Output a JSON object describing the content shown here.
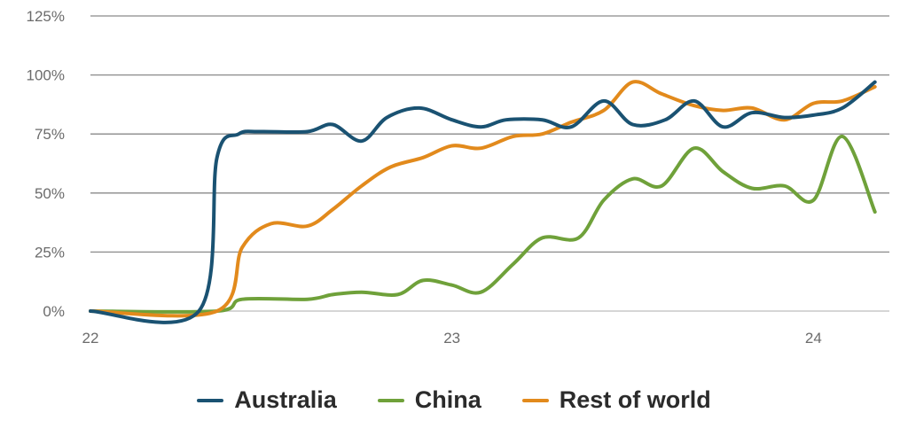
{
  "chart_data": {
    "type": "line",
    "ylim": [
      0,
      125
    ],
    "y_ticks": [
      0,
      25,
      50,
      75,
      100,
      125
    ],
    "y_tick_labels": [
      "0%",
      "25%",
      "50%",
      "75%",
      "100%",
      "125%"
    ],
    "xlim": [
      22,
      24.21
    ],
    "x_ticks": [
      22,
      23,
      24
    ],
    "x_tick_labels": [
      "22",
      "23",
      "24"
    ],
    "grid": true,
    "legend_position": "bottom",
    "series": [
      {
        "name": "Australia",
        "color": "#1a5272",
        "x": [
          22.0,
          22.3,
          22.35,
          22.41,
          22.47,
          22.6,
          22.67,
          22.75,
          22.82,
          22.91,
          23.0,
          23.08,
          23.15,
          23.25,
          23.33,
          23.42,
          23.5,
          23.59,
          23.67,
          23.75,
          23.83,
          23.92,
          24.0,
          24.08,
          24.17
        ],
        "y": [
          0,
          0,
          65,
          75,
          76,
          76,
          79,
          72,
          82,
          86,
          81,
          78,
          81,
          81,
          78,
          89,
          79,
          81,
          89,
          78,
          84,
          82,
          83,
          86,
          97
        ]
      },
      {
        "name": "China",
        "color": "#6fa13a",
        "x": [
          22.0,
          22.35,
          22.42,
          22.6,
          22.67,
          22.75,
          22.85,
          22.92,
          23.0,
          23.08,
          23.17,
          23.25,
          23.35,
          23.42,
          23.5,
          23.58,
          23.67,
          23.75,
          23.83,
          23.92,
          24.0,
          24.08,
          24.17
        ],
        "y": [
          0,
          0,
          5,
          5,
          7,
          8,
          7,
          13,
          11,
          8,
          20,
          31,
          31,
          47,
          56,
          53,
          69,
          59,
          52,
          53,
          47,
          74,
          42
        ]
      },
      {
        "name": "Rest of world",
        "color": "#e28a1c",
        "x": [
          22.0,
          22.35,
          22.42,
          22.5,
          22.6,
          22.67,
          22.75,
          22.83,
          22.92,
          23.0,
          23.08,
          23.17,
          23.25,
          23.33,
          23.42,
          23.5,
          23.58,
          23.67,
          23.75,
          23.83,
          23.92,
          24.0,
          24.08,
          24.17
        ],
        "y": [
          0,
          0,
          27,
          37,
          36,
          43,
          53,
          61,
          65,
          70,
          69,
          74,
          75,
          80,
          85,
          97,
          92,
          87,
          85,
          86,
          81,
          88,
          89,
          95
        ]
      }
    ]
  }
}
